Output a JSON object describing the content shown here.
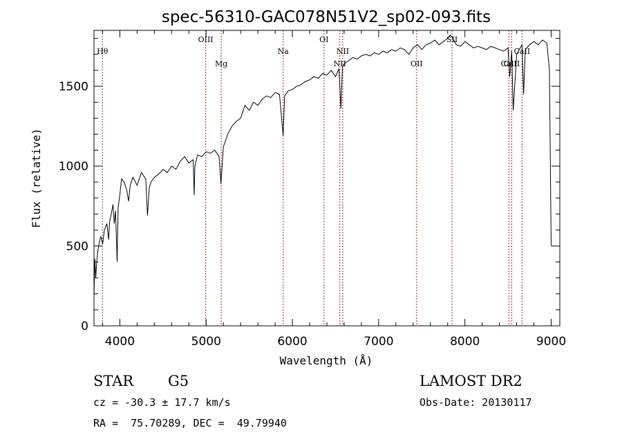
{
  "chart_data": {
    "type": "line",
    "title": "spec-56310-GAC078N51V2_sp02-093.fits",
    "xlabel": "Wavelength (Å)",
    "ylabel": "Flux (relative)",
    "xlim": [
      3700,
      9100
    ],
    "ylim": [
      0,
      1850
    ],
    "xticks": [
      4000,
      5000,
      6000,
      7000,
      8000,
      9000
    ],
    "yticks": [
      0,
      500,
      1000,
      1500
    ],
    "grid": false,
    "line_color": "#000000",
    "marker_color": "#b22222",
    "spectrum": {
      "x": [
        3700,
        3710,
        3720,
        3730,
        3740,
        3760,
        3780,
        3800,
        3820,
        3850,
        3870,
        3880,
        3900,
        3920,
        3935,
        3950,
        3968,
        3980,
        4000,
        4020,
        4050,
        4080,
        4101,
        4120,
        4150,
        4200,
        4250,
        4300,
        4320,
        4340,
        4360,
        4400,
        4450,
        4500,
        4550,
        4600,
        4650,
        4700,
        4750,
        4800,
        4850,
        4861,
        4870,
        4900,
        4950,
        5000,
        5050,
        5100,
        5150,
        5172,
        5200,
        5250,
        5300,
        5350,
        5400,
        5450,
        5500,
        5550,
        5600,
        5650,
        5700,
        5750,
        5800,
        5850,
        5893,
        5910,
        5950,
        6000,
        6050,
        6100,
        6150,
        6200,
        6250,
        6300,
        6350,
        6400,
        6450,
        6500,
        6540,
        6563,
        6580,
        6600,
        6650,
        6700,
        6750,
        6800,
        6850,
        6900,
        6950,
        7000,
        7050,
        7100,
        7150,
        7200,
        7250,
        7300,
        7350,
        7400,
        7450,
        7500,
        7550,
        7600,
        7650,
        7700,
        7750,
        7800,
        7830,
        7850,
        7900,
        7950,
        8000,
        8050,
        8100,
        8150,
        8200,
        8250,
        8300,
        8350,
        8400,
        8450,
        8498,
        8520,
        8542,
        8560,
        8600,
        8662,
        8680,
        8700,
        8750,
        8800,
        8850,
        8900,
        8950,
        8980,
        9000
      ],
      "y": [
        180,
        420,
        300,
        380,
        450,
        520,
        560,
        510,
        600,
        640,
        540,
        650,
        700,
        760,
        640,
        720,
        400,
        740,
        820,
        920,
        900,
        850,
        780,
        880,
        930,
        880,
        960,
        920,
        690,
        860,
        900,
        930,
        950,
        980,
        960,
        1000,
        980,
        1030,
        1060,
        1020,
        1040,
        820,
        1000,
        1070,
        1060,
        1090,
        1080,
        1100,
        1060,
        890,
        1120,
        1200,
        1250,
        1280,
        1300,
        1380,
        1350,
        1400,
        1380,
        1420,
        1440,
        1430,
        1460,
        1450,
        1190,
        1440,
        1470,
        1480,
        1500,
        1510,
        1530,
        1540,
        1560,
        1550,
        1580,
        1570,
        1600,
        1560,
        1610,
        1360,
        1620,
        1640,
        1660,
        1680,
        1670,
        1690,
        1700,
        1690,
        1710,
        1700,
        1720,
        1710,
        1730,
        1720,
        1740,
        1730,
        1700,
        1740,
        1760,
        1730,
        1760,
        1770,
        1790,
        1760,
        1780,
        1800,
        1820,
        1810,
        1760,
        1750,
        1780,
        1760,
        1740,
        1750,
        1740,
        1730,
        1750,
        1740,
        1730,
        1720,
        1740,
        1560,
        1720,
        1350,
        1700,
        1760,
        1450,
        1730,
        1760,
        1780,
        1760,
        1790,
        1770,
        1600,
        500
      ]
    },
    "lines": [
      {
        "label": "Hθ",
        "wavelength": 3798,
        "row": "high"
      },
      {
        "label": "OIII",
        "wavelength": 4995,
        "row": "top"
      },
      {
        "label": "Mg",
        "wavelength": 5175,
        "row": "low"
      },
      {
        "label": "Na",
        "wavelength": 5893,
        "row": "high"
      },
      {
        "label": "OI",
        "wavelength": 6366,
        "row": "top"
      },
      {
        "label": "NII",
        "wavelength": 6550,
        "row": "low"
      },
      {
        "label": "NII",
        "wavelength": 6584,
        "row": "high"
      },
      {
        "label": "OII",
        "wavelength": 7440,
        "row": "low"
      },
      {
        "label": "SII",
        "wavelength": 7851,
        "row": "top"
      },
      {
        "label": "CaII",
        "wavelength": 8510,
        "row": "low"
      },
      {
        "label": "CaII",
        "wavelength": 8542,
        "row": "low"
      },
      {
        "label": "CaII",
        "wavelength": 8662,
        "row": "high"
      }
    ]
  },
  "info": {
    "object_class": "STAR",
    "subclass": "G5",
    "survey": "LAMOST DR2",
    "redshift": "cz = -30.3 ± 17.7 km/s",
    "obs_date": "Obs-Date: 20130117",
    "coords": "RA =  75.70289, DEC =  49.79940"
  }
}
